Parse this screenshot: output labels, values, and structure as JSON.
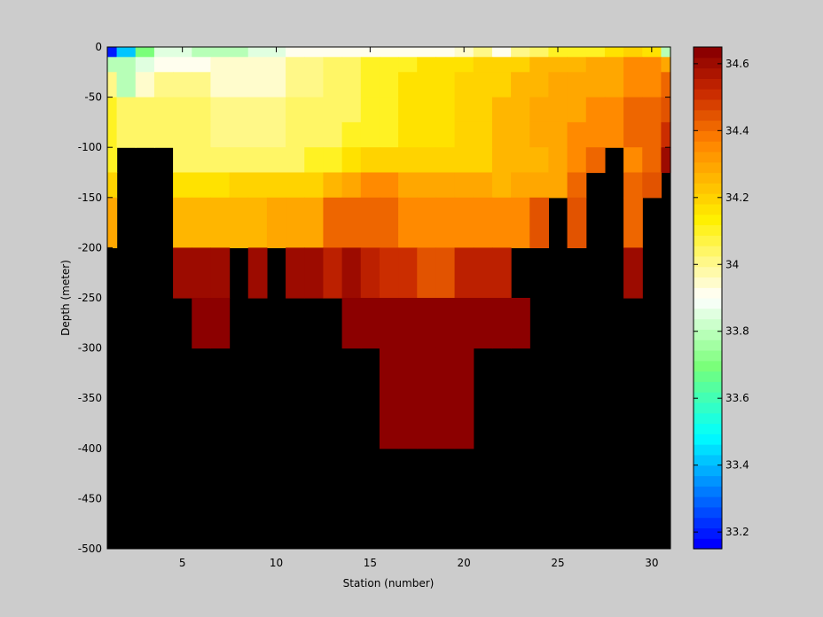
{
  "chart_data": {
    "type": "heatmap",
    "title": "",
    "xlabel": "Station (number)",
    "ylabel": "Depth (meter)",
    "xlim": [
      1,
      31
    ],
    "ylim": [
      -500,
      0
    ],
    "x_ticks": [
      5,
      10,
      15,
      20,
      25,
      30
    ],
    "y_ticks": [
      0,
      -50,
      -100,
      -150,
      -200,
      -250,
      -300,
      -350,
      -400,
      -450,
      -500
    ],
    "colorbar": {
      "range": [
        33.15,
        34.65
      ],
      "ticks": [
        33.2,
        33.4,
        33.6,
        33.8,
        34,
        34.2,
        34.4,
        34.6
      ],
      "tick_labels": [
        "33.2",
        "33.4",
        "33.6",
        "33.8",
        "34",
        "34.2",
        "34.4",
        "34.6"
      ],
      "colormap": "jet-white-hot"
    },
    "no_data_color": "#000000",
    "stations": [
      1,
      2,
      3,
      4,
      5,
      6,
      7,
      8,
      9,
      10,
      11,
      12,
      13,
      14,
      15,
      16,
      17,
      18,
      19,
      20,
      21,
      22,
      23,
      24,
      25,
      26,
      27,
      28,
      29,
      30,
      31
    ],
    "depths": [
      0,
      5,
      10,
      25,
      50,
      75,
      100,
      125,
      150,
      200,
      250,
      300,
      400,
      500
    ],
    "values": [
      [
        33.2,
        33.4,
        33.7,
        33.85,
        33.85,
        33.8,
        33.8,
        33.8,
        33.85,
        33.85,
        33.9,
        33.9,
        33.9,
        33.9,
        33.9,
        33.9,
        33.9,
        33.9,
        33.9,
        33.95,
        34.0,
        33.9,
        34.0,
        34.05,
        34.1,
        34.1,
        34.1,
        34.15,
        34.2,
        34.15,
        33.8
      ],
      [
        33.2,
        33.4,
        33.7,
        33.85,
        33.85,
        33.8,
        33.8,
        33.8,
        33.85,
        33.85,
        33.9,
        33.9,
        33.9,
        33.9,
        33.9,
        33.9,
        33.9,
        33.9,
        33.9,
        33.95,
        34.0,
        33.9,
        34.0,
        34.05,
        34.1,
        34.1,
        34.1,
        34.15,
        34.2,
        34.15,
        33.8
      ],
      [
        33.8,
        33.8,
        33.85,
        33.9,
        33.9,
        33.9,
        33.95,
        33.95,
        33.95,
        33.95,
        34.0,
        34.0,
        34.05,
        34.05,
        34.1,
        34.1,
        34.1,
        34.15,
        34.15,
        34.15,
        34.2,
        34.2,
        34.2,
        34.25,
        34.25,
        34.25,
        34.3,
        34.3,
        34.35,
        34.35,
        34.3
      ],
      [
        34.0,
        33.8,
        33.95,
        34.0,
        34.0,
        34.0,
        33.95,
        33.95,
        33.95,
        33.95,
        34.0,
        34.0,
        34.05,
        34.05,
        34.1,
        34.1,
        34.15,
        34.15,
        34.15,
        34.2,
        34.2,
        34.2,
        34.25,
        34.25,
        34.3,
        34.3,
        34.3,
        34.3,
        34.35,
        34.35,
        34.4
      ],
      [
        34.1,
        34.05,
        34.05,
        34.05,
        34.05,
        34.05,
        34.0,
        34.0,
        34.0,
        34.0,
        34.05,
        34.05,
        34.05,
        34.05,
        34.1,
        34.1,
        34.15,
        34.15,
        34.15,
        34.2,
        34.2,
        34.25,
        34.25,
        34.3,
        34.3,
        34.3,
        34.35,
        34.35,
        34.4,
        34.4,
        34.45
      ],
      [
        34.1,
        34.05,
        34.05,
        34.05,
        34.05,
        34.05,
        34.0,
        34.0,
        34.0,
        34.0,
        34.05,
        34.05,
        34.05,
        34.1,
        34.1,
        34.1,
        34.15,
        34.15,
        34.15,
        34.2,
        34.2,
        34.25,
        34.25,
        34.3,
        34.3,
        34.35,
        34.35,
        34.35,
        34.4,
        34.4,
        34.5
      ],
      [
        34.1,
        null,
        null,
        null,
        34.05,
        34.05,
        34.05,
        34.05,
        34.05,
        34.05,
        34.05,
        34.1,
        34.1,
        34.15,
        34.2,
        34.2,
        34.2,
        34.2,
        34.2,
        34.2,
        34.2,
        34.25,
        34.25,
        34.25,
        34.3,
        34.35,
        34.4,
        null,
        34.35,
        34.4,
        34.6
      ],
      [
        34.2,
        null,
        null,
        null,
        34.15,
        34.15,
        34.15,
        34.2,
        34.2,
        34.2,
        34.2,
        34.2,
        34.25,
        34.3,
        34.35,
        34.35,
        34.3,
        34.3,
        34.3,
        34.3,
        34.3,
        34.25,
        34.3,
        34.3,
        34.3,
        34.4,
        null,
        null,
        34.4,
        34.45,
        null
      ],
      [
        34.3,
        null,
        null,
        null,
        34.25,
        34.25,
        34.25,
        34.25,
        34.25,
        34.3,
        34.3,
        34.3,
        34.4,
        34.4,
        34.4,
        34.4,
        34.35,
        34.35,
        34.35,
        34.35,
        34.35,
        34.35,
        34.35,
        34.45,
        null,
        34.45,
        null,
        null,
        34.4,
        null,
        null
      ],
      [
        null,
        null,
        null,
        null,
        34.6,
        34.6,
        34.6,
        null,
        34.6,
        null,
        34.6,
        34.6,
        34.55,
        34.6,
        34.55,
        34.5,
        34.5,
        34.45,
        34.45,
        34.55,
        34.55,
        34.55,
        null,
        null,
        null,
        null,
        null,
        null,
        34.6,
        null,
        null
      ],
      [
        null,
        null,
        null,
        null,
        null,
        34.65,
        34.65,
        null,
        null,
        null,
        null,
        null,
        null,
        34.65,
        34.65,
        34.62,
        34.62,
        34.62,
        34.62,
        34.62,
        34.62,
        34.62,
        34.65,
        null,
        null,
        null,
        null,
        null,
        null,
        null,
        null
      ],
      [
        null,
        null,
        null,
        null,
        null,
        null,
        null,
        null,
        null,
        null,
        null,
        null,
        null,
        null,
        null,
        34.62,
        34.62,
        34.62,
        34.62,
        34.62,
        null,
        null,
        null,
        null,
        null,
        null,
        null,
        null,
        null,
        null,
        null
      ],
      [
        null,
        null,
        null,
        null,
        null,
        null,
        null,
        null,
        null,
        null,
        null,
        null,
        null,
        null,
        null,
        null,
        null,
        null,
        null,
        null,
        null,
        null,
        null,
        null,
        null,
        null,
        null,
        null,
        null,
        null,
        null
      ],
      [
        null,
        null,
        null,
        null,
        null,
        null,
        null,
        null,
        null,
        null,
        null,
        null,
        null,
        null,
        null,
        null,
        null,
        null,
        null,
        null,
        null,
        null,
        null,
        null,
        null,
        null,
        null,
        null,
        null,
        null,
        null
      ]
    ]
  }
}
